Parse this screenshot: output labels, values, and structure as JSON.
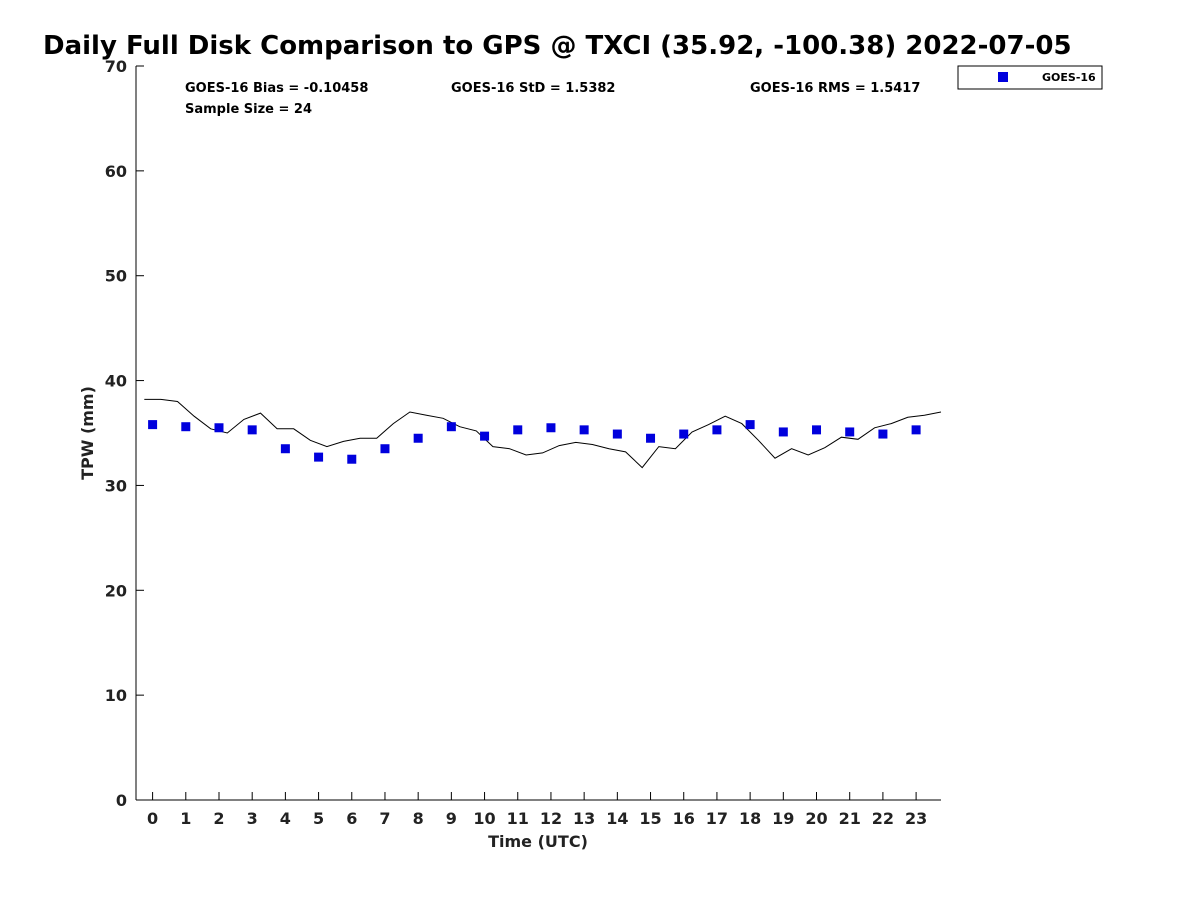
{
  "chart_data": {
    "type": "scatter",
    "title": "Daily Full Disk Comparison to GPS @ TXCI (35.92, -100.38) 2022-07-05",
    "xlabel": "Time (UTC)",
    "ylabel": "TPW (mm)",
    "xlim": [
      -0.5,
      23.75
    ],
    "ylim": [
      0,
      70
    ],
    "x_ticks": [
      0,
      1,
      2,
      3,
      4,
      5,
      6,
      7,
      8,
      9,
      10,
      11,
      12,
      13,
      14,
      15,
      16,
      17,
      18,
      19,
      20,
      21,
      22,
      23
    ],
    "y_ticks": [
      0,
      10,
      20,
      30,
      40,
      50,
      60,
      70
    ],
    "grid": false,
    "legend_position": "top-right-outside",
    "stats": {
      "bias": "GOES-16 Bias = -0.10458",
      "std": "GOES-16 StD = 1.5382",
      "rms": "GOES-16 RMS = 1.5417",
      "sample": "Sample Size = 24"
    },
    "series": [
      {
        "name": "GOES-16",
        "kind": "scatter",
        "color": "#0000dd",
        "x": [
          0,
          1,
          2,
          3,
          4,
          5,
          6,
          7,
          8,
          9,
          10,
          11,
          12,
          13,
          14,
          15,
          16,
          17,
          18,
          19,
          20,
          21,
          22,
          23
        ],
        "y": [
          35.8,
          35.6,
          35.5,
          35.3,
          33.5,
          32.7,
          32.5,
          33.5,
          34.5,
          35.6,
          34.7,
          35.3,
          35.5,
          35.3,
          34.9,
          34.5,
          34.9,
          35.3,
          35.8,
          35.1,
          35.3,
          35.1,
          34.9,
          35.3
        ]
      },
      {
        "kind": "line",
        "color": "#000000",
        "x": [
          -0.25,
          0.25,
          0.75,
          1.25,
          1.75,
          2.25,
          2.75,
          3.25,
          3.75,
          4.25,
          4.75,
          5.25,
          5.75,
          6.25,
          6.75,
          7.25,
          7.75,
          8.25,
          8.75,
          9.25,
          9.75,
          10.25,
          10.75,
          11.25,
          11.75,
          12.25,
          12.75,
          13.25,
          13.75,
          14.25,
          14.75,
          15.25,
          15.75,
          16.25,
          16.75,
          17.25,
          17.75,
          18.25,
          18.75,
          19.25,
          19.75,
          20.25,
          20.75,
          21.25,
          21.75,
          22.25,
          22.75,
          23.25,
          23.75
        ],
        "y": [
          38.2,
          38.2,
          38.0,
          36.6,
          35.4,
          35.0,
          36.3,
          36.9,
          35.4,
          35.4,
          34.3,
          33.7,
          34.2,
          34.5,
          34.5,
          35.9,
          37.0,
          36.7,
          36.4,
          35.6,
          35.2,
          33.7,
          33.5,
          32.9,
          33.1,
          33.8,
          34.1,
          33.9,
          33.5,
          33.2,
          31.7,
          33.7,
          33.5,
          35.1,
          35.8,
          36.6,
          35.9,
          34.3,
          32.6,
          33.5,
          32.9,
          33.6,
          34.6,
          34.4,
          35.5,
          35.9,
          36.5,
          36.7,
          37.0
        ]
      }
    ]
  }
}
